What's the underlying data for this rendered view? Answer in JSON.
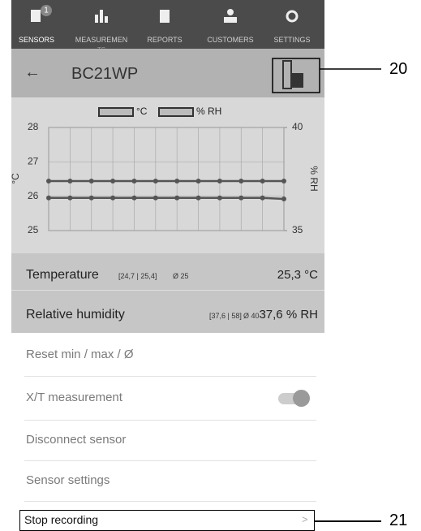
{
  "tabs": [
    {
      "label": "SENSORS",
      "badge": "1"
    },
    {
      "label": "MEASUREMEN",
      "overflow": "TS"
    },
    {
      "label": "REPORTS"
    },
    {
      "label": "CUSTOMERS"
    },
    {
      "label": "SETTINGS"
    }
  ],
  "header": {
    "back": "←",
    "title": "BC21WP"
  },
  "callouts": [
    "20",
    "21"
  ],
  "chart": {
    "type": "line",
    "y_label": "°C",
    "y2_label": "% RH",
    "ylim": [
      25,
      28
    ],
    "yticks": [
      25,
      26,
      27,
      28
    ],
    "y2lim": [
      35,
      40
    ],
    "y2ticks": [
      35,
      40
    ],
    "series": [
      {
        "name": "°C",
        "color": "#555555",
        "values": [
          25.95,
          25.95,
          25.95,
          25.95,
          25.95,
          25.95,
          25.95,
          25.95,
          25.95,
          25.95,
          25.95,
          25.92
        ]
      },
      {
        "name": "% RH",
        "color": "#555555",
        "axis": "y2",
        "values": [
          37.4,
          37.4,
          37.4,
          37.4,
          37.4,
          37.4,
          37.4,
          37.4,
          37.4,
          37.4,
          37.4,
          37.4
        ]
      }
    ]
  },
  "readings": [
    {
      "label": "Temperature",
      "range": "[24,7 | 25,4]",
      "avg": "Ø 25",
      "value": "25,3 °C"
    },
    {
      "label": "Relative humidity",
      "range": "[37,6 | 58]",
      "avg": "Ø 40",
      "value": "37,6 % RH"
    }
  ],
  "menu": [
    "Reset min / max / Ø",
    "X/T measurement",
    "Disconnect sensor",
    "Sensor settings",
    "Stop recording"
  ],
  "chevron": ">"
}
